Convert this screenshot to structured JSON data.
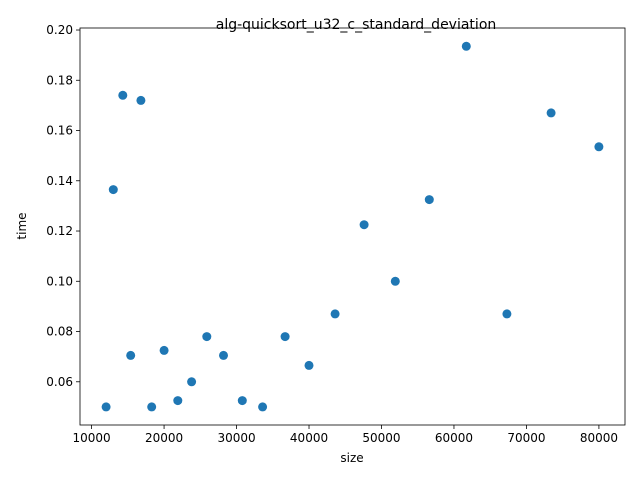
{
  "chart_data": {
    "type": "scatter",
    "title": "alg-quicksort_u32_c_standard_deviation",
    "xlabel": "size",
    "ylabel": "time",
    "xlim": [
      8400,
      83600
    ],
    "ylim": [
      0.0428,
      0.2008
    ],
    "xticks": [
      10000,
      20000,
      30000,
      40000,
      50000,
      60000,
      70000,
      80000
    ],
    "xtick_labels": [
      "10000",
      "20000",
      "30000",
      "40000",
      "50000",
      "60000",
      "70000",
      "80000"
    ],
    "yticks": [
      0.06,
      0.08,
      0.1,
      0.12,
      0.14,
      0.16,
      0.18,
      0.2
    ],
    "ytick_labels": [
      "0.06",
      "0.08",
      "0.10",
      "0.12",
      "0.14",
      "0.16",
      "0.18",
      "0.20"
    ],
    "grid": false,
    "marker_color": "#1f77b4",
    "points": [
      {
        "x": 12000,
        "y": 0.05
      },
      {
        "x": 13000,
        "y": 0.1365
      },
      {
        "x": 14300,
        "y": 0.174
      },
      {
        "x": 15400,
        "y": 0.0705
      },
      {
        "x": 16800,
        "y": 0.172
      },
      {
        "x": 18300,
        "y": 0.05
      },
      {
        "x": 20000,
        "y": 0.0725
      },
      {
        "x": 21900,
        "y": 0.0525
      },
      {
        "x": 23800,
        "y": 0.06
      },
      {
        "x": 25900,
        "y": 0.078
      },
      {
        "x": 28200,
        "y": 0.0705
      },
      {
        "x": 30800,
        "y": 0.0525
      },
      {
        "x": 33600,
        "y": 0.05
      },
      {
        "x": 36700,
        "y": 0.078
      },
      {
        "x": 40000,
        "y": 0.0665
      },
      {
        "x": 43600,
        "y": 0.087
      },
      {
        "x": 47600,
        "y": 0.1225
      },
      {
        "x": 51900,
        "y": 0.1
      },
      {
        "x": 56600,
        "y": 0.1325
      },
      {
        "x": 61700,
        "y": 0.1935
      },
      {
        "x": 67300,
        "y": 0.087
      },
      {
        "x": 73400,
        "y": 0.167
      },
      {
        "x": 80000,
        "y": 0.1535
      }
    ]
  }
}
